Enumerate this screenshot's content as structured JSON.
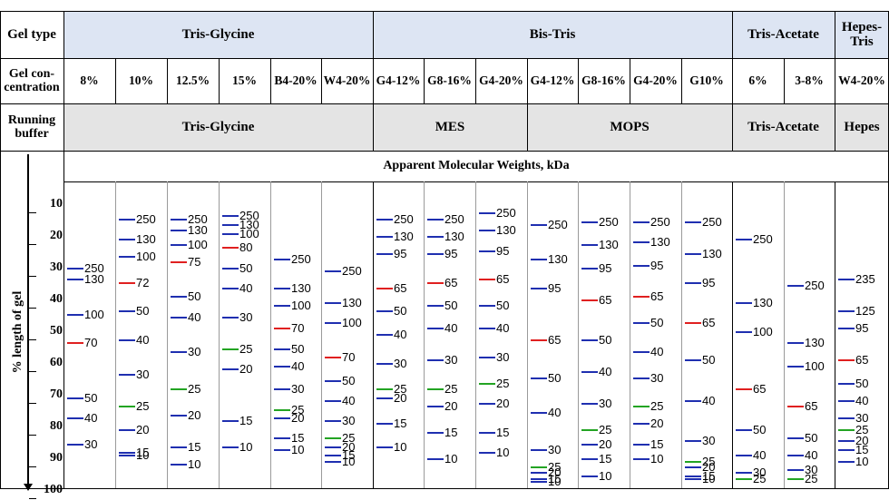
{
  "header": {
    "gel_type_label": "Gel type",
    "gel_conc_label": "Gel con-centration",
    "running_buffer_label": "Running buffer",
    "amw_label": "Apparent Molecular Weights, kDa",
    "y_axis_label": "% length of gel"
  },
  "gel_types": [
    {
      "name": "Tris-Glycine"
    },
    {
      "name": "Bis-Tris"
    },
    {
      "name": "Tris-Acetate"
    },
    {
      "name": "Hepes-Tris"
    }
  ],
  "buffers": [
    {
      "name": "Tris-Glycine"
    },
    {
      "name": "MES"
    },
    {
      "name": "MOPS"
    },
    {
      "name": "Tris-Acetate"
    },
    {
      "name": "Hepes"
    }
  ],
  "y_ticks": [
    "10",
    "20",
    "30",
    "40",
    "50",
    "60",
    "70",
    "80",
    "90",
    "100"
  ],
  "colors": {
    "blue": "#1f2fb0",
    "red": "#e02020",
    "green": "#23a423",
    "header_blue": "#dde5f3",
    "header_gray": "#e4e4e4"
  },
  "columns": [
    {
      "conc": "8%",
      "bands": [
        {
          "label": "250",
          "pct": 26,
          "color": "blue"
        },
        {
          "label": "130",
          "pct": 30,
          "color": "blue"
        },
        {
          "label": "100",
          "pct": 42,
          "color": "blue"
        },
        {
          "label": "70",
          "pct": 52,
          "color": "red"
        },
        {
          "label": "50",
          "pct": 71,
          "color": "blue"
        },
        {
          "label": "40",
          "pct": 78,
          "color": "blue"
        },
        {
          "label": "30",
          "pct": 87,
          "color": "blue"
        }
      ]
    },
    {
      "conc": "10%",
      "bands": [
        {
          "label": "250",
          "pct": 9,
          "color": "blue"
        },
        {
          "label": "130",
          "pct": 16,
          "color": "blue"
        },
        {
          "label": "100",
          "pct": 22,
          "color": "blue"
        },
        {
          "label": "72",
          "pct": 31,
          "color": "red"
        },
        {
          "label": "50",
          "pct": 41,
          "color": "blue"
        },
        {
          "label": "40",
          "pct": 51,
          "color": "blue"
        },
        {
          "label": "30",
          "pct": 63,
          "color": "blue"
        },
        {
          "label": "25",
          "pct": 74,
          "color": "green"
        },
        {
          "label": "20",
          "pct": 82,
          "color": "blue"
        },
        {
          "label": "15",
          "pct": 90,
          "color": "blue"
        },
        {
          "label": "10",
          "pct": 91,
          "color": "blue"
        }
      ]
    },
    {
      "conc": "12.5%",
      "bands": [
        {
          "label": "250",
          "pct": 9,
          "color": "blue"
        },
        {
          "label": "130",
          "pct": 13,
          "color": "blue"
        },
        {
          "label": "100",
          "pct": 18,
          "color": "blue"
        },
        {
          "label": "75",
          "pct": 24,
          "color": "red"
        },
        {
          "label": "50",
          "pct": 36,
          "color": "blue"
        },
        {
          "label": "40",
          "pct": 43,
          "color": "blue"
        },
        {
          "label": "30",
          "pct": 55,
          "color": "blue"
        },
        {
          "label": "25",
          "pct": 68,
          "color": "green"
        },
        {
          "label": "20",
          "pct": 77,
          "color": "blue"
        },
        {
          "label": "15",
          "pct": 88,
          "color": "blue"
        },
        {
          "label": "10",
          "pct": 94,
          "color": "blue"
        }
      ]
    },
    {
      "conc": "15%",
      "bands": [
        {
          "label": "250",
          "pct": 8,
          "color": "blue"
        },
        {
          "label": "130",
          "pct": 11,
          "color": "blue"
        },
        {
          "label": "100",
          "pct": 14,
          "color": "blue"
        },
        {
          "label": "80",
          "pct": 19,
          "color": "red"
        },
        {
          "label": "50",
          "pct": 26,
          "color": "blue"
        },
        {
          "label": "40",
          "pct": 33,
          "color": "blue"
        },
        {
          "label": "30",
          "pct": 43,
          "color": "blue"
        },
        {
          "label": "25",
          "pct": 54,
          "color": "green"
        },
        {
          "label": "20",
          "pct": 61,
          "color": "blue"
        },
        {
          "label": "15",
          "pct": 79,
          "color": "blue"
        },
        {
          "label": "10",
          "pct": 88,
          "color": "blue"
        }
      ]
    },
    {
      "conc": "B4-20%",
      "bands": [
        {
          "label": "250",
          "pct": 23,
          "color": "blue"
        },
        {
          "label": "130",
          "pct": 33,
          "color": "blue"
        },
        {
          "label": "100",
          "pct": 39,
          "color": "blue"
        },
        {
          "label": "70",
          "pct": 47,
          "color": "red"
        },
        {
          "label": "50",
          "pct": 54,
          "color": "blue"
        },
        {
          "label": "40",
          "pct": 60,
          "color": "blue"
        },
        {
          "label": "30",
          "pct": 68,
          "color": "blue"
        },
        {
          "label": "25",
          "pct": 75,
          "color": "green"
        },
        {
          "label": "20",
          "pct": 78,
          "color": "blue"
        },
        {
          "label": "15",
          "pct": 85,
          "color": "blue"
        },
        {
          "label": "10",
          "pct": 89,
          "color": "blue"
        }
      ]
    },
    {
      "conc": "W4-20%",
      "bands": [
        {
          "label": "250",
          "pct": 27,
          "color": "blue"
        },
        {
          "label": "130",
          "pct": 38,
          "color": "blue"
        },
        {
          "label": "100",
          "pct": 45,
          "color": "blue"
        },
        {
          "label": "70",
          "pct": 57,
          "color": "red"
        },
        {
          "label": "50",
          "pct": 65,
          "color": "blue"
        },
        {
          "label": "40",
          "pct": 72,
          "color": "blue"
        },
        {
          "label": "30",
          "pct": 79,
          "color": "blue"
        },
        {
          "label": "25",
          "pct": 85,
          "color": "green"
        },
        {
          "label": "20",
          "pct": 88,
          "color": "blue"
        },
        {
          "label": "15",
          "pct": 91,
          "color": "blue"
        },
        {
          "label": "10",
          "pct": 93,
          "color": "blue"
        }
      ]
    },
    {
      "conc": "G4-12%",
      "bands": [
        {
          "label": "250",
          "pct": 9,
          "color": "blue"
        },
        {
          "label": "130",
          "pct": 15,
          "color": "blue"
        },
        {
          "label": "95",
          "pct": 21,
          "color": "blue"
        },
        {
          "label": "65",
          "pct": 33,
          "color": "red"
        },
        {
          "label": "50",
          "pct": 41,
          "color": "blue"
        },
        {
          "label": "40",
          "pct": 49,
          "color": "blue"
        },
        {
          "label": "30",
          "pct": 59,
          "color": "blue"
        },
        {
          "label": "25",
          "pct": 68,
          "color": "green"
        },
        {
          "label": "20",
          "pct": 71,
          "color": "blue"
        },
        {
          "label": "15",
          "pct": 80,
          "color": "blue"
        },
        {
          "label": "10",
          "pct": 88,
          "color": "blue"
        }
      ]
    },
    {
      "conc": "G8-16%",
      "bands": [
        {
          "label": "250",
          "pct": 9,
          "color": "blue"
        },
        {
          "label": "130",
          "pct": 15,
          "color": "blue"
        },
        {
          "label": "95",
          "pct": 21,
          "color": "blue"
        },
        {
          "label": "65",
          "pct": 31,
          "color": "red"
        },
        {
          "label": "50",
          "pct": 39,
          "color": "blue"
        },
        {
          "label": "40",
          "pct": 47,
          "color": "blue"
        },
        {
          "label": "30",
          "pct": 58,
          "color": "blue"
        },
        {
          "label": "25",
          "pct": 68,
          "color": "green"
        },
        {
          "label": "20",
          "pct": 74,
          "color": "blue"
        },
        {
          "label": "15",
          "pct": 83,
          "color": "blue"
        },
        {
          "label": "10",
          "pct": 92,
          "color": "blue"
        }
      ]
    },
    {
      "conc": "G4-20%",
      "bands": [
        {
          "label": "250",
          "pct": 7,
          "color": "blue"
        },
        {
          "label": "130",
          "pct": 13,
          "color": "blue"
        },
        {
          "label": "95",
          "pct": 20,
          "color": "blue"
        },
        {
          "label": "65",
          "pct": 30,
          "color": "red"
        },
        {
          "label": "50",
          "pct": 39,
          "color": "blue"
        },
        {
          "label": "40",
          "pct": 47,
          "color": "blue"
        },
        {
          "label": "30",
          "pct": 57,
          "color": "blue"
        },
        {
          "label": "25",
          "pct": 66,
          "color": "green"
        },
        {
          "label": "20",
          "pct": 73,
          "color": "blue"
        },
        {
          "label": "15",
          "pct": 83,
          "color": "blue"
        },
        {
          "label": "10",
          "pct": 90,
          "color": "blue"
        }
      ]
    },
    {
      "conc": "G4-12%",
      "bands": [
        {
          "label": "250",
          "pct": 11,
          "color": "blue"
        },
        {
          "label": "130",
          "pct": 23,
          "color": "blue"
        },
        {
          "label": "95",
          "pct": 33,
          "color": "blue"
        },
        {
          "label": "65",
          "pct": 51,
          "color": "red"
        },
        {
          "label": "50",
          "pct": 64,
          "color": "blue"
        },
        {
          "label": "40",
          "pct": 76,
          "color": "blue"
        },
        {
          "label": "30",
          "pct": 89,
          "color": "blue"
        },
        {
          "label": "25",
          "pct": 95,
          "color": "green"
        },
        {
          "label": "20",
          "pct": 97,
          "color": "blue"
        },
        {
          "label": "15",
          "pct": 99,
          "color": "blue"
        },
        {
          "label": "10",
          "pct": 100,
          "color": "blue"
        }
      ]
    },
    {
      "conc": "G8-16%",
      "bands": [
        {
          "label": "250",
          "pct": 10,
          "color": "blue"
        },
        {
          "label": "130",
          "pct": 18,
          "color": "blue"
        },
        {
          "label": "95",
          "pct": 26,
          "color": "blue"
        },
        {
          "label": "65",
          "pct": 37,
          "color": "red"
        },
        {
          "label": "50",
          "pct": 51,
          "color": "blue"
        },
        {
          "label": "40",
          "pct": 62,
          "color": "blue"
        },
        {
          "label": "30",
          "pct": 73,
          "color": "blue"
        },
        {
          "label": "25",
          "pct": 82,
          "color": "green"
        },
        {
          "label": "20",
          "pct": 87,
          "color": "blue"
        },
        {
          "label": "15",
          "pct": 92,
          "color": "blue"
        },
        {
          "label": "10",
          "pct": 98,
          "color": "blue"
        }
      ]
    },
    {
      "conc": "G4-20%",
      "bands": [
        {
          "label": "250",
          "pct": 10,
          "color": "blue"
        },
        {
          "label": "130",
          "pct": 17,
          "color": "blue"
        },
        {
          "label": "95",
          "pct": 25,
          "color": "blue"
        },
        {
          "label": "65",
          "pct": 36,
          "color": "red"
        },
        {
          "label": "50",
          "pct": 45,
          "color": "blue"
        },
        {
          "label": "40",
          "pct": 55,
          "color": "blue"
        },
        {
          "label": "30",
          "pct": 64,
          "color": "blue"
        },
        {
          "label": "25",
          "pct": 74,
          "color": "green"
        },
        {
          "label": "20",
          "pct": 80,
          "color": "blue"
        },
        {
          "label": "15",
          "pct": 87,
          "color": "blue"
        },
        {
          "label": "10",
          "pct": 92,
          "color": "blue"
        }
      ]
    },
    {
      "conc": "G10%",
      "bands": [
        {
          "label": "250",
          "pct": 10,
          "color": "blue"
        },
        {
          "label": "130",
          "pct": 21,
          "color": "blue"
        },
        {
          "label": "95",
          "pct": 31,
          "color": "blue"
        },
        {
          "label": "65",
          "pct": 45,
          "color": "red"
        },
        {
          "label": "50",
          "pct": 58,
          "color": "blue"
        },
        {
          "label": "40",
          "pct": 72,
          "color": "blue"
        },
        {
          "label": "30",
          "pct": 86,
          "color": "blue"
        },
        {
          "label": "25",
          "pct": 93,
          "color": "green"
        },
        {
          "label": "20",
          "pct": 95,
          "color": "blue"
        },
        {
          "label": "15",
          "pct": 98,
          "color": "blue"
        },
        {
          "label": "10",
          "pct": 99,
          "color": "blue"
        }
      ]
    },
    {
      "conc": "6%",
      "bands": [
        {
          "label": "250",
          "pct": 16,
          "color": "blue"
        },
        {
          "label": "130",
          "pct": 38,
          "color": "blue"
        },
        {
          "label": "100",
          "pct": 48,
          "color": "blue"
        },
        {
          "label": "65",
          "pct": 68,
          "color": "red"
        },
        {
          "label": "50",
          "pct": 82,
          "color": "blue"
        },
        {
          "label": "40",
          "pct": 91,
          "color": "blue"
        },
        {
          "label": "30",
          "pct": 97,
          "color": "blue"
        },
        {
          "label": "25",
          "pct": 99,
          "color": "green"
        }
      ]
    },
    {
      "conc": "3-8%",
      "bands": [
        {
          "label": "250",
          "pct": 32,
          "color": "blue"
        },
        {
          "label": "130",
          "pct": 52,
          "color": "blue"
        },
        {
          "label": "100",
          "pct": 60,
          "color": "blue"
        },
        {
          "label": "65",
          "pct": 74,
          "color": "red"
        },
        {
          "label": "50",
          "pct": 85,
          "color": "blue"
        },
        {
          "label": "40",
          "pct": 91,
          "color": "blue"
        },
        {
          "label": "30",
          "pct": 96,
          "color": "blue"
        },
        {
          "label": "25",
          "pct": 99,
          "color": "green"
        }
      ]
    },
    {
      "conc": "W4-20%",
      "bands": [
        {
          "label": "235",
          "pct": 30,
          "color": "blue"
        },
        {
          "label": "125",
          "pct": 41,
          "color": "blue"
        },
        {
          "label": "95",
          "pct": 47,
          "color": "blue"
        },
        {
          "label": "65",
          "pct": 58,
          "color": "red"
        },
        {
          "label": "50",
          "pct": 66,
          "color": "blue"
        },
        {
          "label": "40",
          "pct": 72,
          "color": "blue"
        },
        {
          "label": "30",
          "pct": 78,
          "color": "blue"
        },
        {
          "label": "25",
          "pct": 82,
          "color": "green"
        },
        {
          "label": "20",
          "pct": 86,
          "color": "blue"
        },
        {
          "label": "15",
          "pct": 89,
          "color": "blue"
        },
        {
          "label": "10",
          "pct": 93,
          "color": "blue"
        }
      ]
    }
  ]
}
